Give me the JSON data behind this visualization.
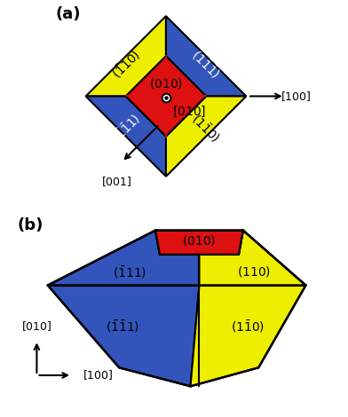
{
  "bg_color": "#ffffff",
  "red": "#dd1111",
  "blue": "#3355bb",
  "yellow": "#eeee00",
  "black": "#000000",
  "panel_a_label": "(a)",
  "panel_b_label": "(b)",
  "label_fontsize": 13,
  "tick_fontsize": 10,
  "arrow_fontsize": 9
}
